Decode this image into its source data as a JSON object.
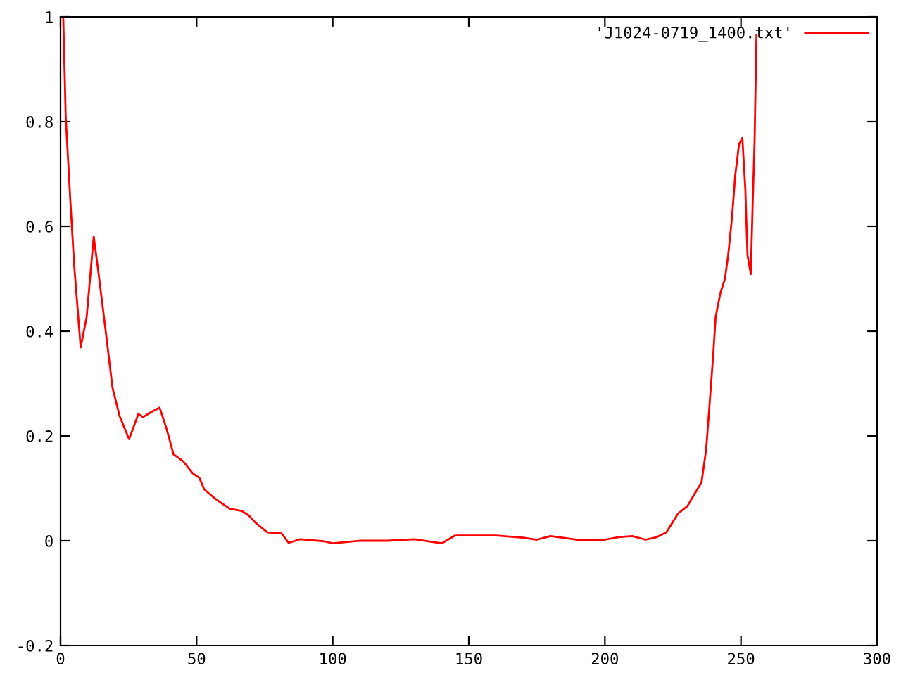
{
  "chart_data": {
    "type": "line",
    "xlim": [
      0,
      300
    ],
    "ylim": [
      -0.2,
      1
    ],
    "xticks": [
      0,
      50,
      100,
      150,
      200,
      250,
      300
    ],
    "yticks": [
      -0.2,
      0,
      0.2,
      0.4,
      0.6,
      0.8,
      1
    ],
    "grid": false,
    "legend": "top right",
    "marker": "none",
    "line_style": "solid",
    "series": [
      {
        "name": "'J1024-0719_1400.txt'",
        "color": "#ff0000",
        "x": [
          1,
          1.9,
          3.6,
          5.0,
          7.4,
          9.6,
          12.2,
          14.0,
          16.6,
          19.1,
          21.7,
          25.2,
          28.6,
          30.3,
          33.8,
          36.4,
          38.9,
          41.5,
          45,
          48.5,
          51,
          52.8,
          57.1,
          62.2,
          66.6,
          69.2,
          71.7,
          76,
          81.2,
          83.8,
          88.1,
          96.7,
          100,
          110,
          120,
          130,
          140,
          145,
          150,
          160,
          170,
          175,
          180,
          190,
          200,
          205,
          210,
          215,
          219.1,
          222.6,
          226.9,
          230.3,
          232.9,
          235.5,
          237.2,
          238.4,
          239.8,
          240.7,
          242.4,
          244.1,
          245.3,
          246.7,
          247.9,
          249.3,
          250.5,
          251.6,
          252.4,
          253.6,
          254.3,
          255.0,
          255.7
        ],
        "values": [
          1.0,
          0.81,
          0.65,
          0.527,
          0.369,
          0.427,
          0.581,
          0.509,
          0.4,
          0.292,
          0.238,
          0.194,
          0.242,
          0.236,
          0.247,
          0.254,
          0.215,
          0.165,
          0.152,
          0.129,
          0.12,
          0.098,
          0.079,
          0.061,
          0.057,
          0.048,
          0.034,
          0.016,
          0.014,
          -0.004,
          0.003,
          -0.001,
          -0.005,
          0.0,
          0.0,
          0.003,
          -0.005,
          0.01,
          0.01,
          0.01,
          0.006,
          0.002,
          0.009,
          0.002,
          0.002,
          0.007,
          0.009,
          0.002,
          0.007,
          0.016,
          0.052,
          0.066,
          0.089,
          0.111,
          0.174,
          0.256,
          0.355,
          0.427,
          0.472,
          0.5,
          0.545,
          0.617,
          0.698,
          0.757,
          0.769,
          0.671,
          0.545,
          0.509,
          0.644,
          0.762,
          0.965
        ]
      }
    ]
  }
}
